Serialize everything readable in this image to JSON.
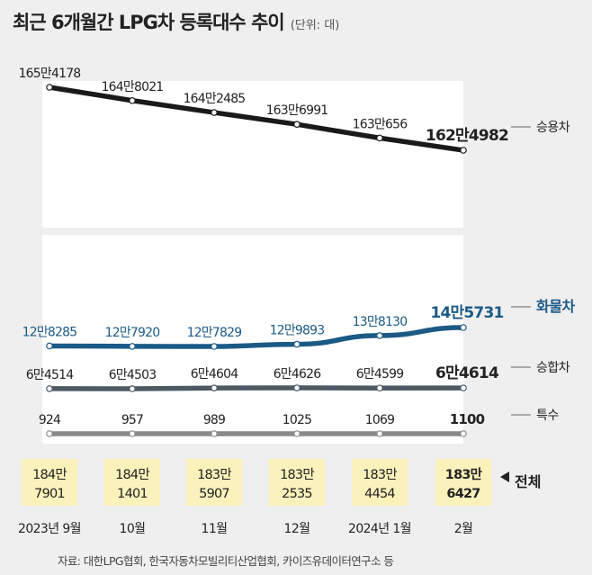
{
  "title": "최근 6개월간 LPG차 등록대수 추이",
  "unit": "(단위: 대)",
  "source": "자료: 대한LPG협회, 한국자동차모빌리티산업협회, 카이즈유데이터연구소 등",
  "colors": {
    "승용차": "#1a1a1a",
    "화물차": "#1c5a86",
    "승합차": "#4d5a66",
    "특수": "#8a8a8a",
    "total_box": "#fbf1bb"
  },
  "chart_data": {
    "type": "line",
    "x": [
      "2023년 9월",
      "10월",
      "11월",
      "12월",
      "2024년 1월",
      "2월"
    ],
    "series": [
      {
        "name": "승용차",
        "values": [
          1654178,
          1648021,
          1642485,
          1636991,
          1630656,
          1624982
        ],
        "labels": [
          "165만4178",
          "164만8021",
          "164만2485",
          "163만6991",
          "163만656",
          "162만4982"
        ]
      },
      {
        "name": "화물차",
        "values": [
          128285,
          127920,
          127829,
          129893,
          138130,
          145731
        ],
        "labels": [
          "12만8285",
          "12만7920",
          "12만7829",
          "12만9893",
          "13만8130",
          "14만5731"
        ]
      },
      {
        "name": "승합차",
        "values": [
          64514,
          64503,
          64604,
          64626,
          64599,
          64614
        ],
        "labels": [
          "6만4514",
          "6만4503",
          "6만4604",
          "6만4626",
          "6만4599",
          "6만4614"
        ]
      },
      {
        "name": "특수",
        "values": [
          924,
          957,
          989,
          1025,
          1069,
          1100
        ],
        "labels": [
          "924",
          "957",
          "989",
          "1025",
          "1069",
          "1100"
        ]
      }
    ],
    "total": {
      "name": "전체",
      "values": [
        1847901,
        1841401,
        1835907,
        1832535,
        1834454,
        1836427
      ],
      "labels": [
        [
          "184만",
          "7901"
        ],
        [
          "184만",
          "1401"
        ],
        [
          "183만",
          "5907"
        ],
        [
          "183만",
          "2535"
        ],
        [
          "183만",
          "4454"
        ],
        [
          "183만",
          "6427"
        ]
      ]
    },
    "axis_break": true,
    "grid": false,
    "legend": "right"
  }
}
